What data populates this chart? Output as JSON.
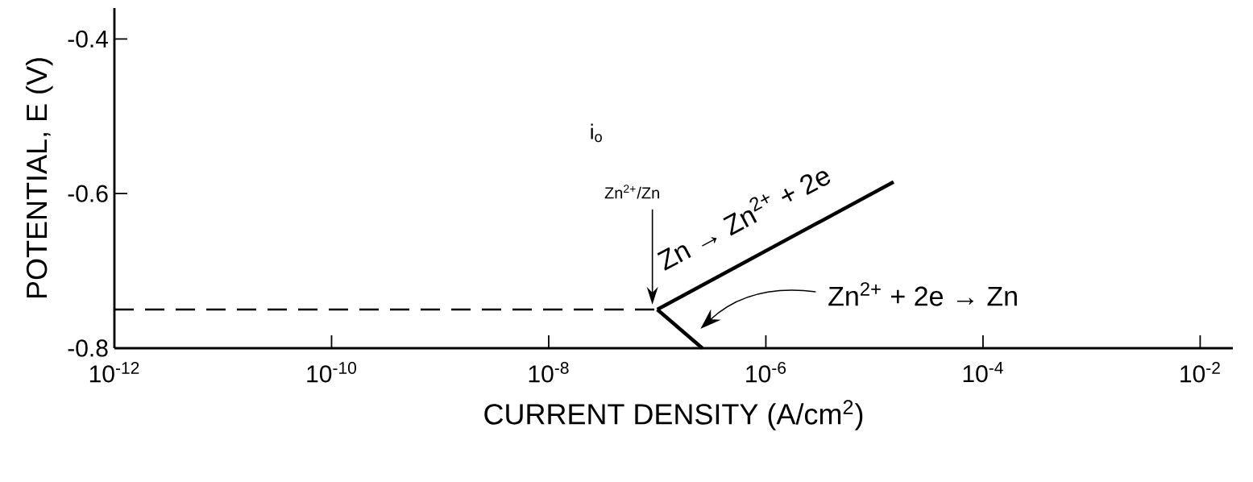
{
  "chart_data": {
    "type": "line",
    "xlabel": "CURRENT DENSITY (A/cm$^{2}$)",
    "ylabel": "POTENTIAL, E (V)",
    "log": "x",
    "xlim": [
      1e-12,
      0.02
    ],
    "ylim": [
      -0.8,
      -0.36
    ],
    "xticks": [
      {
        "value": 1e-12,
        "label": "10$^{-12}$"
      },
      {
        "value": 1e-10,
        "label": "10$^{-10}$"
      },
      {
        "value": 1e-08,
        "label": "10$^{-8}$"
      },
      {
        "value": 1e-06,
        "label": "10$^{-6}$"
      },
      {
        "value": 0.0001,
        "label": "10$^{-4}$"
      },
      {
        "value": 0.01,
        "label": "10$^{-2}$"
      }
    ],
    "yticks": [
      -0.4,
      -0.6,
      -0.8
    ],
    "marker": "none",
    "series": [
      {
        "color": "#000000",
        "line_style": "dashed",
        "x": [
          1e-12,
          1e-07
        ],
        "values": [
          -0.75,
          -0.75
        ]
      },
      {
        "color": "#000000",
        "line_style": "solid",
        "x": [
          1e-07,
          1.5e-05
        ],
        "values": [
          -0.75,
          -0.585
        ]
      },
      {
        "color": "#000000",
        "line_style": "solid",
        "x": [
          1e-07,
          2.6e-07
        ],
        "values": [
          -0.75,
          -0.8
        ]
      }
    ],
    "annotations": [
      "i$_{o}$",
      "Zn$^{2+}$/Zn",
      {
        "text": "Zn → Zn$^{2+}$ + 2e",
        "x": 1e-06,
        "y": -0.674
      },
      "Zn$^{2+}$ + 2e → Zn"
    ]
  }
}
